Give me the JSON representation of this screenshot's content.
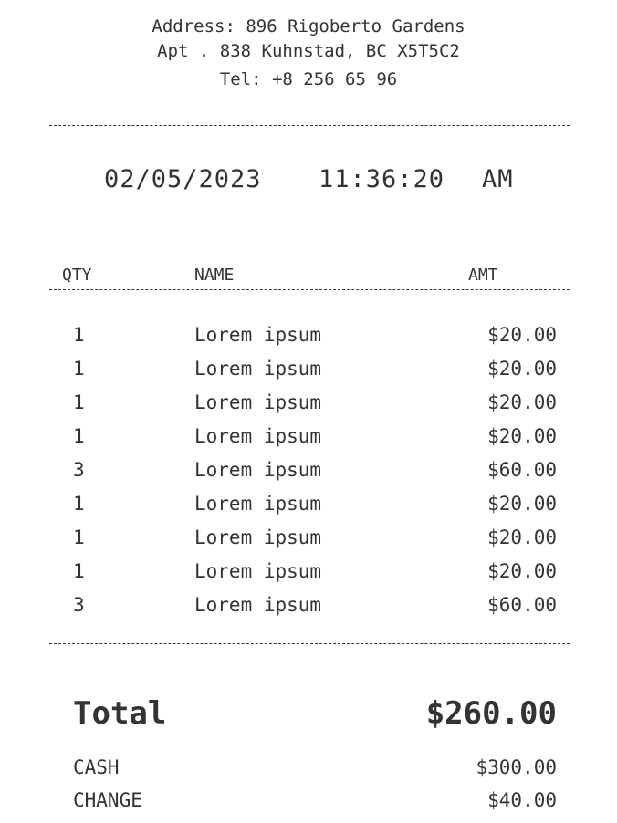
{
  "header": {
    "address_line": "Address: 896 Rigoberto Gardens",
    "apt_line": "Apt . 838 Kuhnstad, BC X5T5C2",
    "tel_line": "Tel: +8 256 65 96"
  },
  "datetime": {
    "date": "02/05/2023",
    "time": "11:36:20",
    "ampm": "AM"
  },
  "columns": {
    "qty": "QTY",
    "name": "NAME",
    "amt": "AMT"
  },
  "items": [
    {
      "qty": "1",
      "name": "Lorem ipsum",
      "amt": "$20.00"
    },
    {
      "qty": "1",
      "name": "Lorem ipsum",
      "amt": "$20.00"
    },
    {
      "qty": "1",
      "name": "Lorem ipsum",
      "amt": "$20.00"
    },
    {
      "qty": "1",
      "name": "Lorem ipsum",
      "amt": "$20.00"
    },
    {
      "qty": "3",
      "name": "Lorem ipsum",
      "amt": "$60.00"
    },
    {
      "qty": "1",
      "name": "Lorem ipsum",
      "amt": "$20.00"
    },
    {
      "qty": "1",
      "name": "Lorem ipsum",
      "amt": "$20.00"
    },
    {
      "qty": "1",
      "name": "Lorem ipsum",
      "amt": "$20.00"
    },
    {
      "qty": "3",
      "name": "Lorem ipsum",
      "amt": "$60.00"
    }
  ],
  "totals": {
    "total_label": "Total",
    "total_value": "$260.00",
    "cash_label": "CASH",
    "cash_value": "$300.00",
    "change_label": "CHANGE",
    "change_value": "$40.00"
  }
}
